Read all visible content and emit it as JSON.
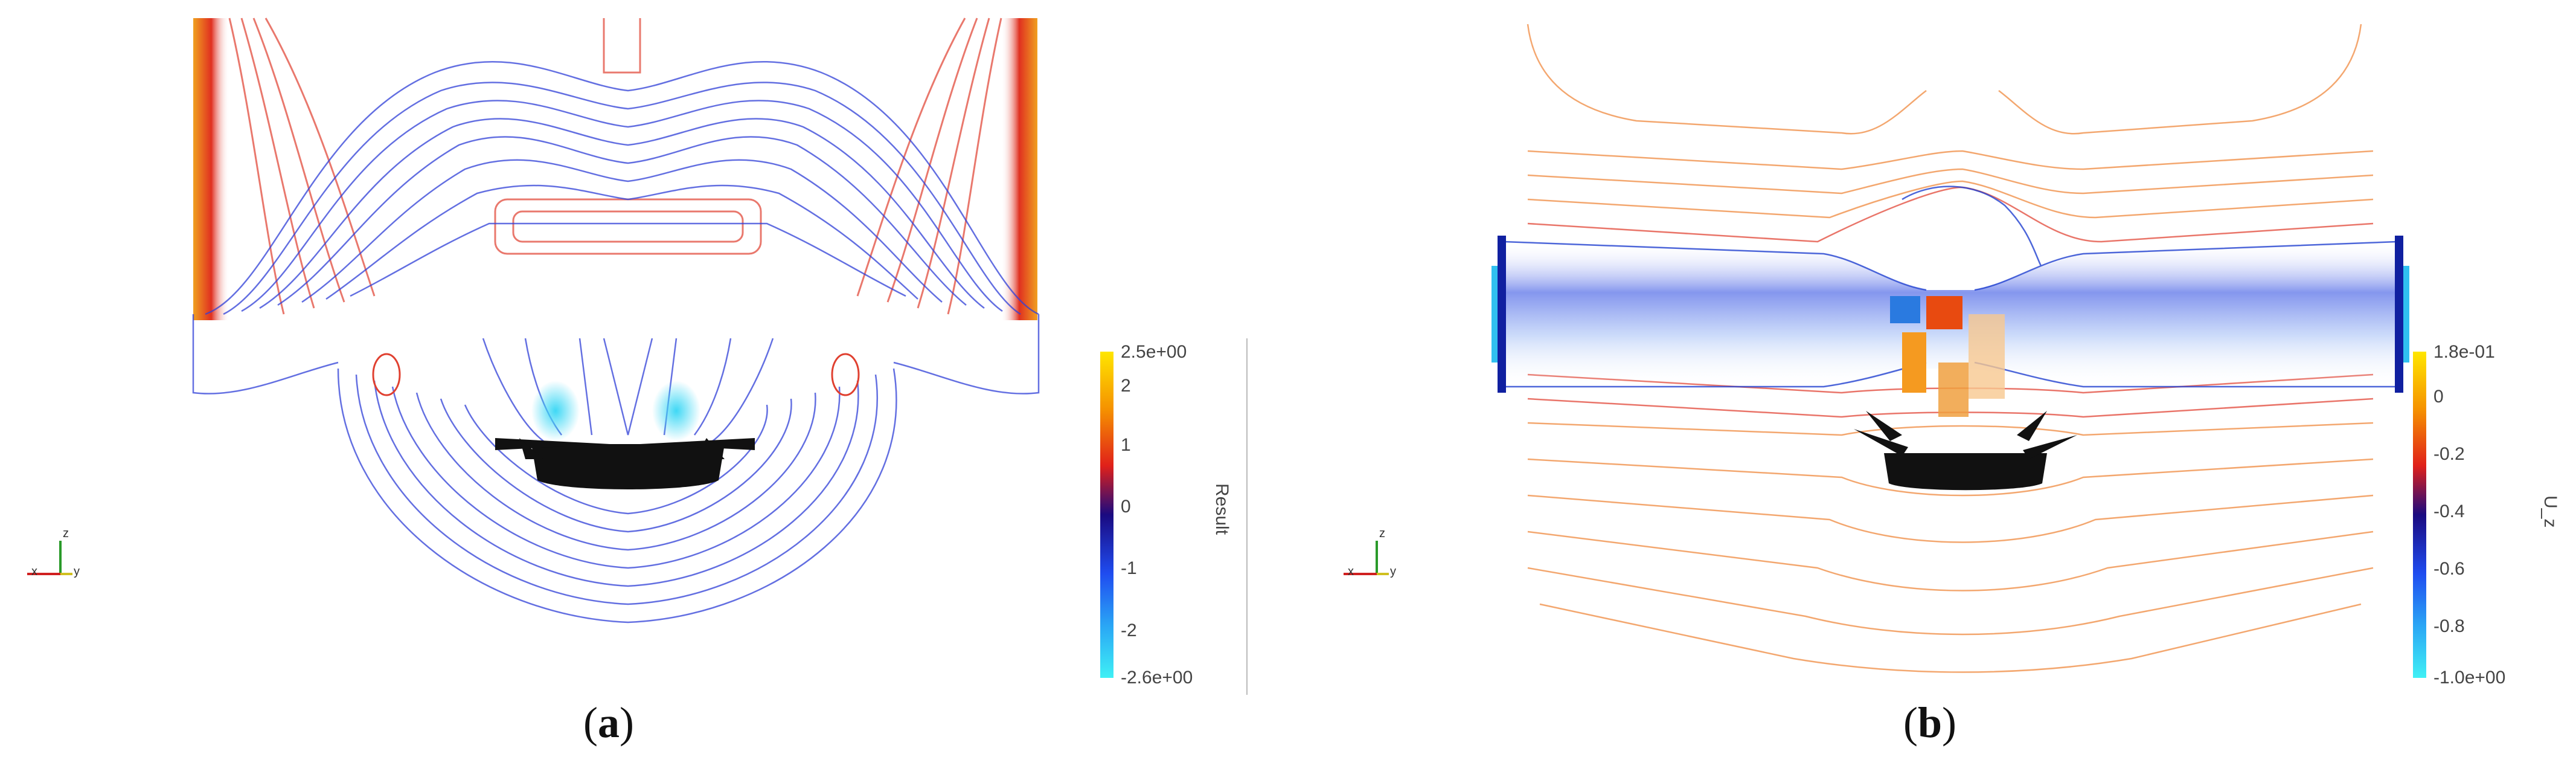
{
  "panel_a": {
    "caption_open": "(",
    "caption_letter": "a",
    "caption_close": ")",
    "colorbar": {
      "title": "Result",
      "ticks": [
        "2.5e+00",
        "2",
        "1",
        "0",
        "-1",
        "-2",
        "-2.6e+00"
      ],
      "colors": [
        "#ffe600",
        "#f59000",
        "#e0201a",
        "#1a0a80",
        "#1f4cf0",
        "#2aa6f5",
        "#3ff0f5"
      ]
    },
    "axes_triad": {
      "z": "z",
      "y": "y",
      "x": "x"
    }
  },
  "panel_b": {
    "caption_open": "(",
    "caption_letter": "b",
    "caption_close": ")",
    "colorbar": {
      "title": "U_z",
      "ticks": [
        "1.8e-01",
        "0",
        "-0.2",
        "-0.4",
        "-0.6",
        "-0.8",
        "-1.0e+00"
      ],
      "colors": [
        "#ffe600",
        "#f59000",
        "#e0201a",
        "#1a0a80",
        "#1f4cf0",
        "#2aa6f5",
        "#3ff0f5"
      ]
    },
    "axes_triad": {
      "z": "z",
      "y": "y",
      "x": "x"
    }
  }
}
